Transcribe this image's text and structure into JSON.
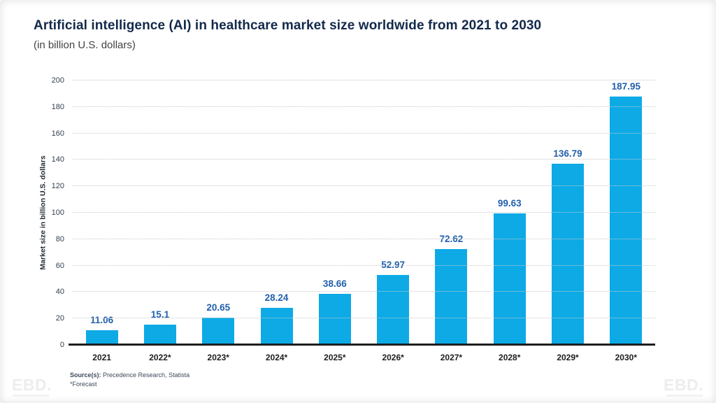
{
  "header": {
    "title": "Artificial intelligence (AI) in healthcare market size worldwide from 2021 to 2030",
    "subtitle": "(in billion U.S. dollars)"
  },
  "chart_data": {
    "type": "bar",
    "title": "Artificial intelligence (AI) in healthcare market size worldwide from 2021 to 2030",
    "subtitle": "(in billion U.S. dollars)",
    "categories": [
      "2021",
      "2022*",
      "2023*",
      "2024*",
      "2025*",
      "2026*",
      "2027*",
      "2028*",
      "2029*",
      "2030*"
    ],
    "values": [
      11.06,
      15.1,
      20.65,
      28.24,
      38.66,
      52.97,
      72.62,
      99.63,
      136.79,
      187.95
    ],
    "value_labels": [
      "11.06",
      "15.1",
      "20.65",
      "28.24",
      "38.66",
      "52.97",
      "72.62",
      "99.63",
      "136.79",
      "187.95"
    ],
    "xlabel": "",
    "ylabel": "Market size in billion U.S. dollars",
    "ylim": [
      0,
      200
    ],
    "yticks": [
      0,
      20,
      40,
      60,
      80,
      100,
      120,
      140,
      160,
      180,
      200
    ],
    "grid": "horizontal dotted",
    "legend": "none",
    "bar_color": "#0daae6",
    "value_label_color": "#2160ac"
  },
  "footer": {
    "source_label": "Source(s):",
    "source_text": " Precedence Research, Statista",
    "forecast_note": "*Forecast"
  },
  "watermark": {
    "text": "EBD."
  }
}
